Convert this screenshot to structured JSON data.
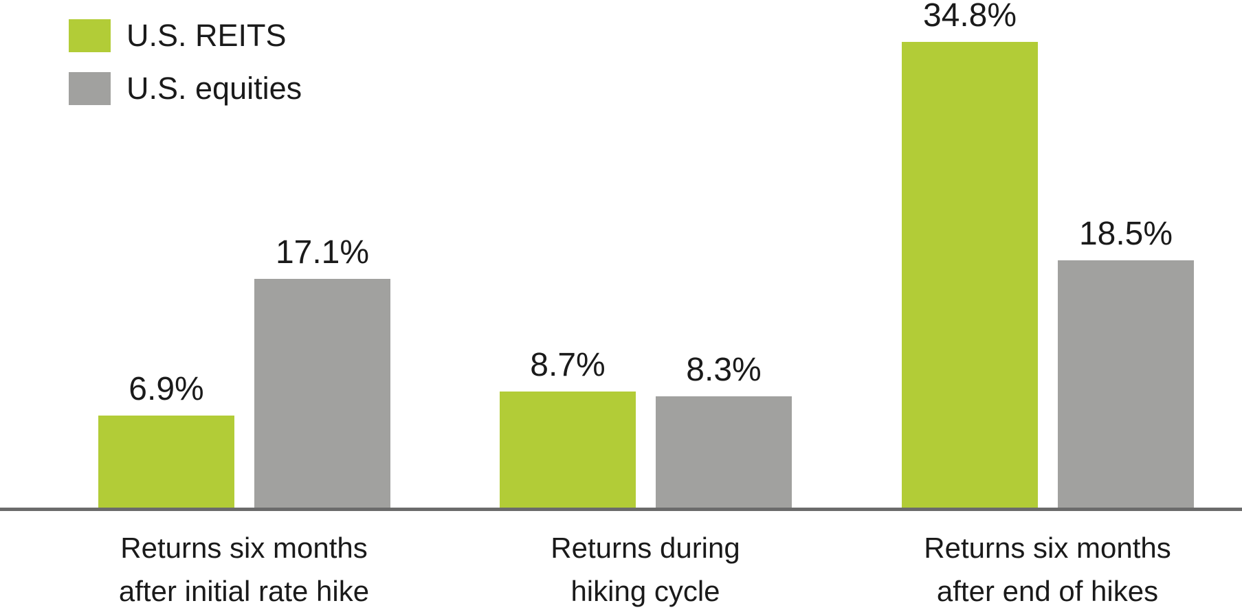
{
  "colors": {
    "reits_green": "#B2CC37",
    "equities_gray": "#A1A19F",
    "axis_line": "#6B6B6B",
    "text": "#1A1A1A",
    "background": "#FFFFFF"
  },
  "legend": {
    "position": "top-left",
    "items": [
      {
        "label": "U.S. REITS",
        "color": "#B2CC37"
      },
      {
        "label": "U.S. equities",
        "color": "#A1A19F"
      }
    ]
  },
  "chart_data": {
    "type": "bar",
    "title": "",
    "xlabel": "",
    "ylabel": "",
    "ylim": [
      0,
      36
    ],
    "grid": false,
    "legend_position": "top-left",
    "categories": [
      "Returns six months after initial rate hike",
      "Returns during hiking cycle",
      "Returns six months after end of hikes"
    ],
    "category_lines": [
      [
        "Returns six months",
        "after initial rate hike"
      ],
      [
        "Returns during",
        "hiking cycle"
      ],
      [
        "Returns six months",
        "after end of hikes"
      ]
    ],
    "series": [
      {
        "name": "U.S. REITS",
        "color": "#B2CC37",
        "values": [
          6.9,
          8.7,
          34.8
        ],
        "labels": [
          "6.9%",
          "8.7%",
          "34.8%"
        ]
      },
      {
        "name": "U.S. equities",
        "color": "#A1A19F",
        "values": [
          17.1,
          8.3,
          18.5
        ],
        "labels": [
          "17.1%",
          "8.3%",
          "18.5%"
        ]
      }
    ]
  }
}
